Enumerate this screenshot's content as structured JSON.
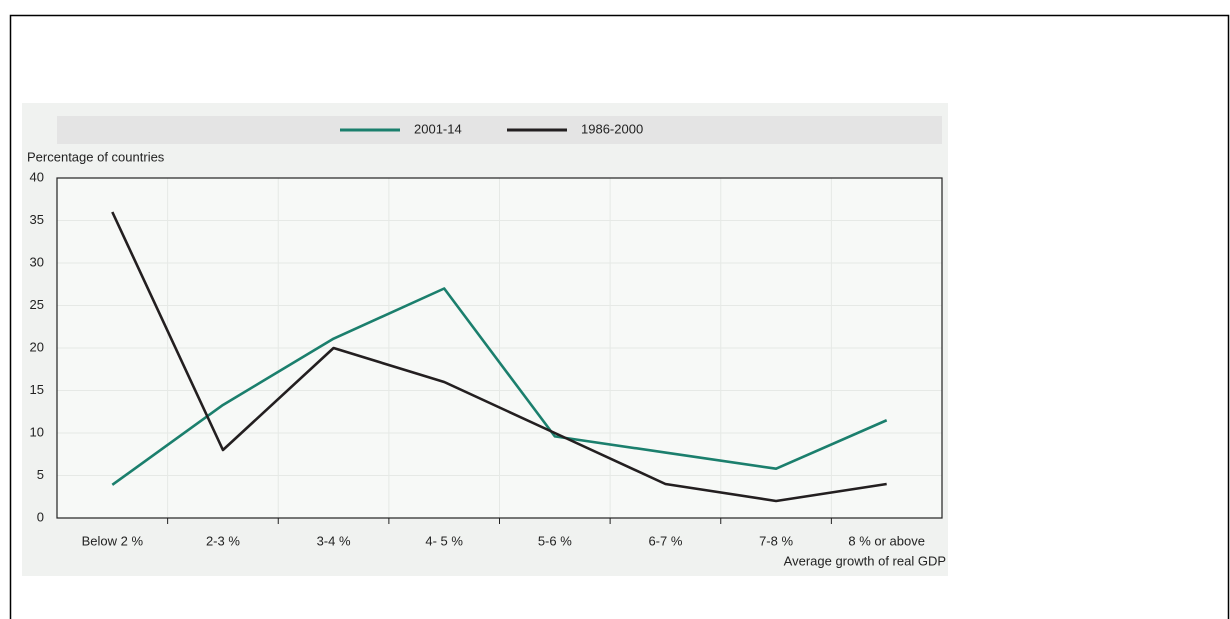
{
  "chart_data": {
    "type": "line",
    "y_label": "Percentage of countries",
    "x_label": "Average growth of real GDP",
    "categories": [
      "Below 2 %",
      "2-3 %",
      "3-4 %",
      "4- 5 %",
      "5-6 %",
      "6-7 %",
      "7-8 %",
      "8 % or above"
    ],
    "series": [
      {
        "name": "2001-14",
        "color": "#1b7f6d",
        "values": [
          3.9,
          13.3,
          21.1,
          27,
          9.6,
          7.7,
          5.8,
          11.5
        ]
      },
      {
        "name": "1986-2000",
        "color": "#231f20",
        "values": [
          36,
          8,
          20,
          16,
          10,
          4,
          2,
          4
        ]
      }
    ],
    "ylim": [
      0,
      40
    ],
    "yticks": [
      0,
      5,
      10,
      15,
      20,
      25,
      30,
      35,
      40
    ],
    "grid": true
  }
}
